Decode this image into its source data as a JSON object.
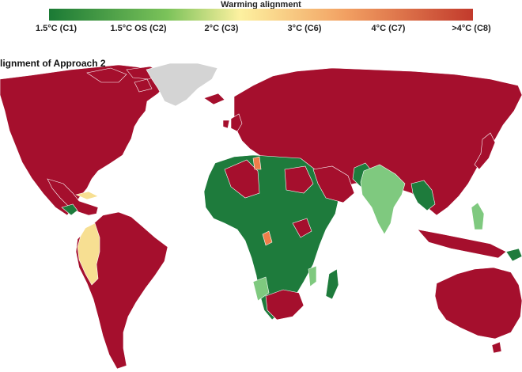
{
  "legend": {
    "title": "Warming alignment",
    "ticks": [
      "1.5°C (C1)",
      "1.5°C OS (C2)",
      "2°C (C3)",
      "3°C (C6)",
      "4°C (C7)",
      ">4°C (C8)"
    ],
    "gradient": [
      "#2e7d32",
      "#8bc34a",
      "#fff59d",
      "#f39c5a",
      "#c0392b"
    ]
  },
  "map": {
    "title": "lignment of Approach 2",
    "colors": {
      "c8": "#a50f2d",
      "c1": "#1e7b3c",
      "c2": "#7fc97f",
      "c3": "#f7df92",
      "c6": "#ef7e4a",
      "nodata": "#d4d4d4",
      "border": "#ffffff"
    }
  }
}
